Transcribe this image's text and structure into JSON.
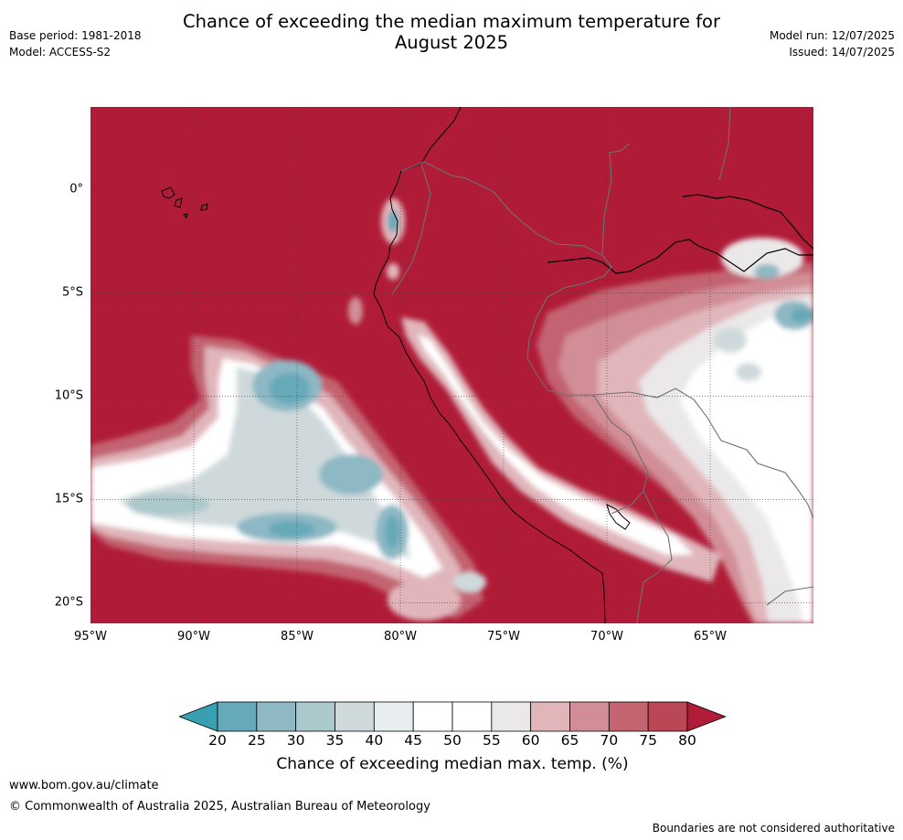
{
  "header": {
    "base_period": "Base period: 1981-2018",
    "model": "Model: ACCESS-S2",
    "title_line1": "Chance of exceeding the median maximum temperature for",
    "title_line2": "August 2025",
    "model_run": "Model run: 12/07/2025",
    "issued": "Issued: 14/07/2025"
  },
  "map": {
    "extent": {
      "lon_min": -95,
      "lon_max": -60,
      "lat_min": -21,
      "lat_max": 4
    },
    "background_color": "#b01c38",
    "lat_ticks": [
      {
        "value": 0,
        "label": "0°"
      },
      {
        "value": -5,
        "label": "5°S"
      },
      {
        "value": -10,
        "label": "10°S"
      },
      {
        "value": -15,
        "label": "15°S"
      },
      {
        "value": -20,
        "label": "20°S"
      }
    ],
    "lon_ticks": [
      {
        "value": -95,
        "label": "95°W"
      },
      {
        "value": -90,
        "label": "90°W"
      },
      {
        "value": -85,
        "label": "85°W"
      },
      {
        "value": -80,
        "label": "80°W"
      },
      {
        "value": -75,
        "label": "75°W"
      },
      {
        "value": -70,
        "label": "70°W"
      },
      {
        "value": -65,
        "label": "65°W"
      }
    ],
    "grid": true
  },
  "colorbar": {
    "label": "Chance of exceeding median max. temp. (%)",
    "ticks": [
      "20",
      "25",
      "30",
      "35",
      "40",
      "45",
      "50",
      "55",
      "60",
      "65",
      "70",
      "75",
      "80"
    ],
    "under_color": "#3a9fb0",
    "over_color": "#b01c38",
    "colors": [
      "#66a9b8",
      "#8db8c4",
      "#abc8cc",
      "#cfd9db",
      "#e8eef0",
      "#ffffff",
      "#ffffff",
      "#ebe8e9",
      "#e0b6bb",
      "#d28e96",
      "#c36471",
      "#bb4656"
    ]
  },
  "footer": {
    "site": "www.bom.gov.au/climate",
    "copyright": "© Commonwealth of Australia 2025, Australian Bureau of Meteorology",
    "disclaimer": "Boundaries are not considered authoritative"
  }
}
